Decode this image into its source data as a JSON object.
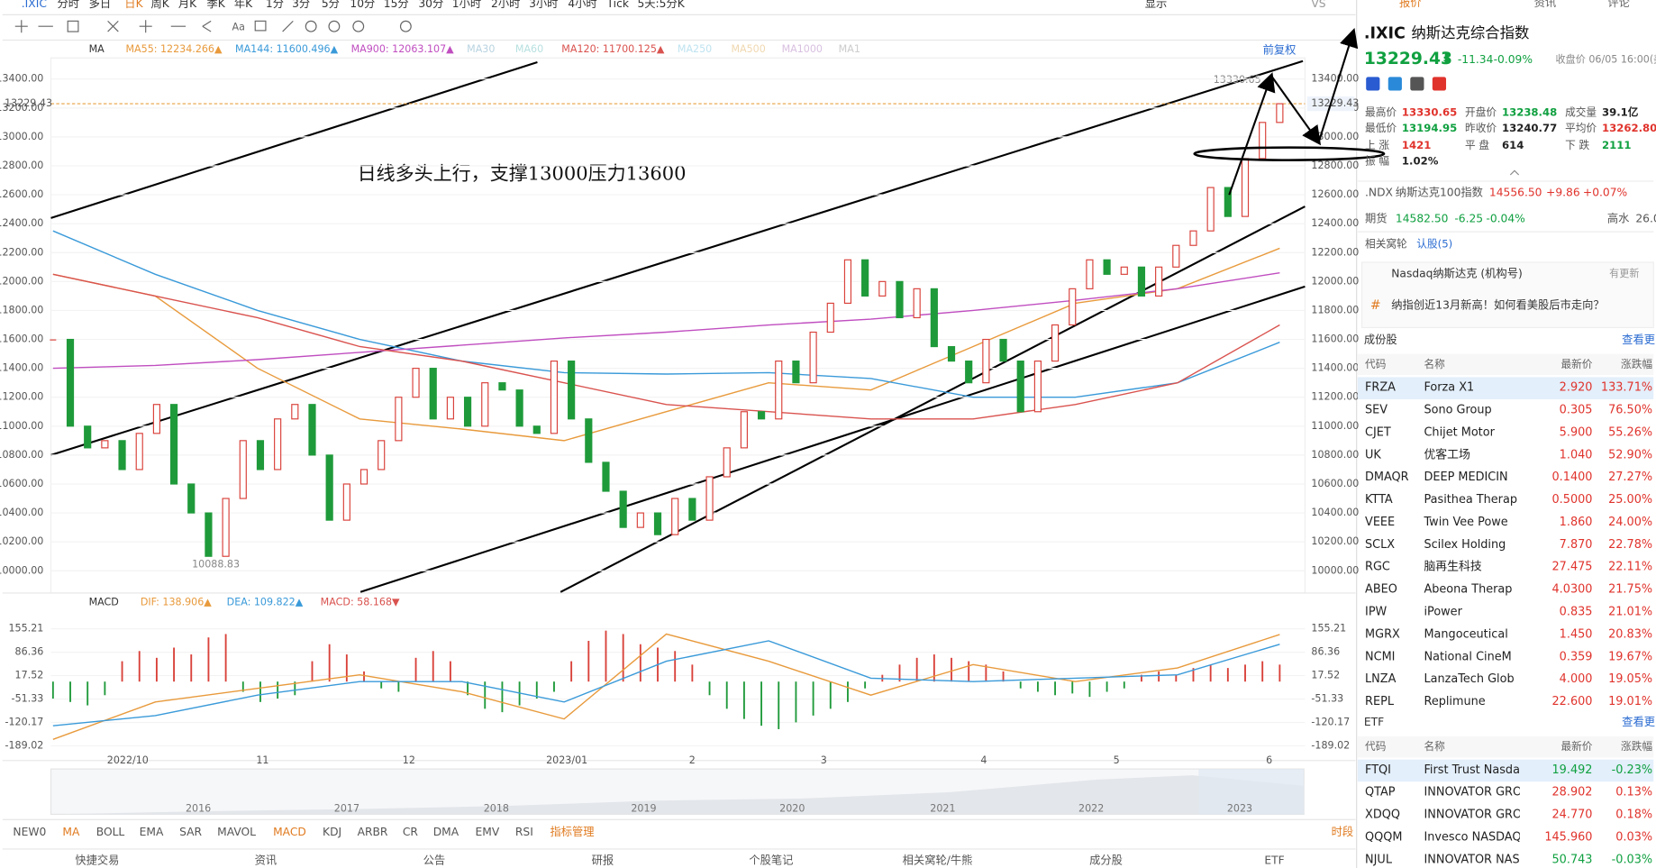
{
  "top_tabs": [
    ".IXIC",
    "分时",
    "多日",
    "日K",
    "周K",
    "月K",
    "季K",
    "年K",
    "1分",
    "3分",
    "5分",
    "10分",
    "15分",
    "30分",
    "1小时",
    "2小时",
    "3小时",
    "4小时",
    "Tick",
    "5天:5分K"
  ],
  "top_right": [
    "显示",
    "VS"
  ],
  "ma_legend": {
    "label": "MA",
    "items": [
      {
        "name": "MA55:",
        "value": "12234.266▲",
        "color": "#e89a3c"
      },
      {
        "name": "MA144:",
        "value": "11600.496▲",
        "color": "#3a9ad9"
      },
      {
        "name": "MA900:",
        "value": "12063.107▲",
        "color": "#c04ec0"
      },
      {
        "name": "MA30",
        "color": "#b9d3e0"
      },
      {
        "name": "MA60",
        "color": "#b9e0e0"
      },
      {
        "name": "MA120:",
        "value": "11700.125▲",
        "color": "#d9534f"
      },
      {
        "name": "MA250",
        "color": "#bfe3f0"
      },
      {
        "name": "MA500",
        "color": "#f0d8b0"
      },
      {
        "name": "MA1000",
        "color": "#d8c0e0"
      },
      {
        "name": "MA1",
        "color": "#cccccc"
      }
    ]
  },
  "price_chart": {
    "ylim": [
      9846,
      13546
    ],
    "yticks": [
      {
        "value": 13400,
        "label": "13400.00"
      },
      {
        "value": 13200,
        "label": "13200.00"
      },
      {
        "value": 13000,
        "label": "13000.00"
      },
      {
        "value": 12800,
        "label": "12800.00"
      },
      {
        "value": 12600,
        "label": "12600.00"
      },
      {
        "value": 12400,
        "label": "12400.00"
      },
      {
        "value": 12200,
        "label": "12200.00"
      },
      {
        "value": 12000,
        "label": "12000.00"
      },
      {
        "value": 11800,
        "label": "11800.00"
      },
      {
        "value": 11600,
        "label": "11600.00"
      },
      {
        "value": 11400,
        "label": "11400.00"
      },
      {
        "value": 11200,
        "label": "11200.00"
      },
      {
        "value": 11000,
        "label": "11000.00"
      },
      {
        "value": 10800,
        "label": "10800.00"
      },
      {
        "value": 10600,
        "label": "10600.00"
      },
      {
        "value": 10400,
        "label": "10400.00"
      },
      {
        "value": 10200,
        "label": "10200.00"
      },
      {
        "value": 10000,
        "label": "10000.00"
      }
    ],
    "last_price": {
      "value": 13229.43,
      "label": "13229.43"
    },
    "high_label": "13330.65",
    "low_label": "10088.83",
    "annotation": "日线多头上行，支撑13000压力13600",
    "adjust": "前复权",
    "x_labels": [
      "2022/10",
      "11",
      "12",
      "2023/01",
      "2",
      "3",
      "4",
      "5",
      "6"
    ],
    "up_color": "#d9413a",
    "down_color": "#1f9a3a",
    "closes": [
      11600,
      11000,
      10850,
      10900,
      10700,
      10950,
      11150,
      10600,
      10400,
      10100,
      10500,
      10900,
      10700,
      11050,
      11150,
      10800,
      10350,
      10600,
      10700,
      10900,
      11200,
      11400,
      11050,
      11200,
      11000,
      11300,
      11250,
      11000,
      10950,
      11450,
      11050,
      10750,
      10550,
      10300,
      10400,
      10250,
      10500,
      10350,
      10650,
      10850,
      11100,
      11050,
      11450,
      11300,
      11650,
      11850,
      12150,
      11900,
      12000,
      11750,
      11950,
      11550,
      11450,
      11300,
      11600,
      11450,
      11100,
      11450,
      11700,
      11950,
      12150,
      12050,
      12100,
      11900,
      12100,
      12250,
      12350,
      12650,
      12450,
      12850,
      13100,
      13229.43
    ],
    "ma_lines": [
      {
        "color": "#e89a3c",
        "values": [
          12050,
          11900,
          11400,
          11050,
          10980,
          10900,
          11100,
          11300,
          11250,
          11550,
          11850,
          11950,
          12230
        ]
      },
      {
        "color": "#3a9ad9",
        "values": [
          12350,
          12050,
          11800,
          11600,
          11450,
          11370,
          11360,
          11370,
          11330,
          11200,
          11200,
          11300,
          11580
        ]
      },
      {
        "color": "#c04ec0",
        "values": [
          11400,
          11420,
          11460,
          11510,
          11560,
          11610,
          11650,
          11700,
          11740,
          11800,
          11870,
          11950,
          12060
        ]
      },
      {
        "color": "#d9534f",
        "values": [
          12050,
          11900,
          11750,
          11550,
          11450,
          11300,
          11150,
          11100,
          11050,
          11050,
          11150,
          11300,
          11700
        ]
      }
    ]
  },
  "macd": {
    "legend": {
      "label": "MACD",
      "items": [
        {
          "name": "DIF:",
          "value": "138.906▲",
          "color": "#e89a3c"
        },
        {
          "name": "DEA:",
          "value": "109.822▲",
          "color": "#3a9ad9"
        },
        {
          "name": "MACD:",
          "value": "58.168▼",
          "color": "#d9534f"
        }
      ]
    },
    "ylim": [
      -220,
      198.6
    ],
    "yticks": [
      155.21,
      86.36,
      17.52,
      -51.33,
      -120.17,
      -189.02
    ],
    "hist": [
      -50,
      -60,
      -70,
      -40,
      60,
      90,
      70,
      100,
      80,
      130,
      140,
      -30,
      -60,
      -50,
      -40,
      60,
      110,
      80,
      30,
      -20,
      -30,
      70,
      90,
      60,
      -40,
      -80,
      -90,
      -70,
      -50,
      -30,
      60,
      120,
      150,
      140,
      110,
      100,
      90,
      50,
      -40,
      -80,
      -110,
      -130,
      -140,
      -120,
      -100,
      -80,
      -60,
      -20,
      20,
      50,
      70,
      80,
      70,
      60,
      50,
      30,
      -20,
      -30,
      -40,
      -35,
      -45,
      -30,
      -20,
      20,
      30,
      20,
      40,
      50,
      40,
      50,
      60,
      50
    ],
    "dif": [
      -170,
      -60,
      -20,
      20,
      -30,
      -110,
      140,
      60,
      -40,
      50,
      0,
      40,
      138.906
    ],
    "dea": [
      -130,
      -100,
      -40,
      0,
      0,
      -60,
      60,
      120,
      10,
      0,
      10,
      20,
      109.822
    ]
  },
  "navigator": {
    "years": [
      "2016",
      "2017",
      "2018",
      "2019",
      "2020",
      "2021",
      "2022",
      "2023"
    ]
  },
  "indicator_tabs": [
    "NEW0",
    "MA",
    "BOLL",
    "EMA",
    "SAR",
    "MAVOL",
    "MACD",
    "KDJ",
    "ARBR",
    "CR",
    "DMA",
    "EMV",
    "RSI",
    "指标管理"
  ],
  "period_button": "时段",
  "bottom_tabs": [
    "快捷交易",
    "资讯",
    "公告",
    "研报",
    "个股笔记",
    "相关窝轮/牛熊",
    "成分股",
    "ETF"
  ],
  "quote": {
    "tabs": [
      "报价",
      "资讯",
      "评论"
    ],
    "symbol": ".IXIC",
    "name": "纳斯达克综合指数",
    "price": "13229.43",
    "arrow": "⬇",
    "change": "-11.34",
    "change_pct": "-0.09%",
    "status": "收盘价 06/05 16:00(美",
    "stats": [
      [
        [
          "最高价",
          "13330.65",
          "up"
        ],
        [
          "开盘价",
          "13238.48",
          "down"
        ],
        [
          "成交量",
          "39.1亿",
          ""
        ]
      ],
      [
        [
          "最低价",
          "13194.95",
          "down"
        ],
        [
          "昨收价",
          "13240.77",
          ""
        ],
        [
          "平均价",
          "13262.80",
          "up"
        ]
      ],
      [
        [
          "上  涨",
          "1421",
          "up"
        ],
        [
          "平  盘",
          "614",
          ""
        ],
        [
          "下  跌",
          "2111",
          "down"
        ]
      ],
      [
        [
          "振  幅",
          "1.02%",
          ""
        ]
      ]
    ],
    "ndx": [
      ".NDX",
      "纳斯达克100指数",
      "14556.50",
      "+9.86",
      "+0.07%"
    ],
    "futures": [
      "期货",
      "14582.50",
      "-6.25",
      "-0.04%",
      "高水",
      "26.0"
    ],
    "warrants": [
      "相关窝轮",
      "认股(5)"
    ],
    "news_source": [
      "Nasdaq纳斯达克 (机构号)",
      "有更新"
    ],
    "news": "纳指创近13月新高！如何看美股后市走向？",
    "constituents": {
      "title": "成份股",
      "more": "查看更",
      "header": [
        "代码",
        "名称",
        "最新价",
        "涨跌幅"
      ],
      "rows": [
        [
          "FRZA",
          "Forza X1",
          "2.920",
          "133.71%"
        ],
        [
          "SEV",
          "Sono Group",
          "0.305",
          "76.50%"
        ],
        [
          "CJET",
          "Chijet Motor",
          "5.900",
          "55.26%"
        ],
        [
          "UK",
          "优客工场",
          "1.040",
          "52.90%"
        ],
        [
          "DMAQR",
          "DEEP MEDICIN",
          "0.1400",
          "27.27%"
        ],
        [
          "KTTA",
          "Pasithea Therap",
          "0.5000",
          "25.00%"
        ],
        [
          "VEEE",
          "Twin Vee Powe",
          "1.860",
          "24.00%"
        ],
        [
          "SCLX",
          "Scilex Holding",
          "7.870",
          "22.78%"
        ],
        [
          "RGC",
          "脑再生科技",
          "27.475",
          "22.11%"
        ],
        [
          "ABEO",
          "Abeona Therap",
          "4.0300",
          "21.75%"
        ],
        [
          "IPW",
          "iPower",
          "0.835",
          "21.01%"
        ],
        [
          "MGRX",
          "Mangoceutical",
          "1.450",
          "20.83%"
        ],
        [
          "NCMI",
          "National CineM",
          "0.359",
          "19.67%"
        ],
        [
          "LNZA",
          "LanzaTech Glob",
          "4.000",
          "19.05%"
        ],
        [
          "REPL",
          "Replimune",
          "22.600",
          "19.01%"
        ]
      ]
    },
    "etf": {
      "title": "ETF",
      "more": "查看更",
      "header": [
        "代码",
        "名称",
        "最新价",
        "涨跌幅"
      ],
      "rows": [
        [
          "FTQI",
          "First Trust Nasdaq",
          "19.492",
          "-0.23%"
        ],
        [
          "QTAP",
          "INNOVATOR GRO",
          "28.902",
          "0.13%"
        ],
        [
          "XDQQ",
          "INNOVATOR GRO",
          "24.770",
          "0.18%"
        ],
        [
          "QQQM",
          "Invesco NASDAQ",
          "145.960",
          "0.03%"
        ],
        [
          "NJUL",
          "INNOVATOR NAS",
          "50.743",
          "-0.03%"
        ]
      ]
    }
  }
}
